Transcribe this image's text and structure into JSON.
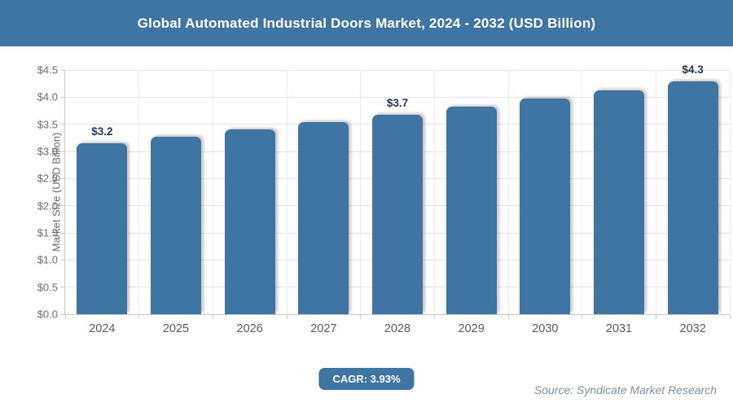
{
  "header": {
    "title": "Global Automated Industrial Doors Market, 2024 - 2032 (USD Billion)"
  },
  "chart_data": {
    "type": "bar",
    "title": "Global Automated Industrial Doors Market, 2024 - 2032 (USD Billion)",
    "categories": [
      "2024",
      "2025",
      "2026",
      "2027",
      "2028",
      "2029",
      "2030",
      "2031",
      "2032"
    ],
    "values": [
      3.15,
      3.27,
      3.4,
      3.54,
      3.67,
      3.82,
      3.97,
      4.12,
      4.29
    ],
    "bar_labels": [
      "$3.2",
      "",
      "",
      "",
      "$3.7",
      "",
      "",
      "",
      "$4.3"
    ],
    "xlabel": "",
    "ylabel": "Market Size (USD Billion)",
    "ylim": [
      0,
      4.5
    ],
    "ytick_step": 0.5,
    "ytick_labels": [
      "$0.0",
      "$0.5",
      "$1.0",
      "$1.5",
      "$2.0",
      "$2.5",
      "$3.0",
      "$3.5",
      "$4.0",
      "$4.5"
    ],
    "grid": true,
    "legend": false,
    "bar_color": "#3f75a2",
    "bar_label_color": "#1f3a60"
  },
  "footer": {
    "cagr_label": "CAGR: 3.93%",
    "source": "Source: Syndicate Market Research"
  },
  "colors": {
    "accent_blue": "#3f75a2",
    "grid_gray": "#e4e4e4",
    "axis_gray": "#c9c9c9",
    "text_gray": "#6e6e6e"
  }
}
